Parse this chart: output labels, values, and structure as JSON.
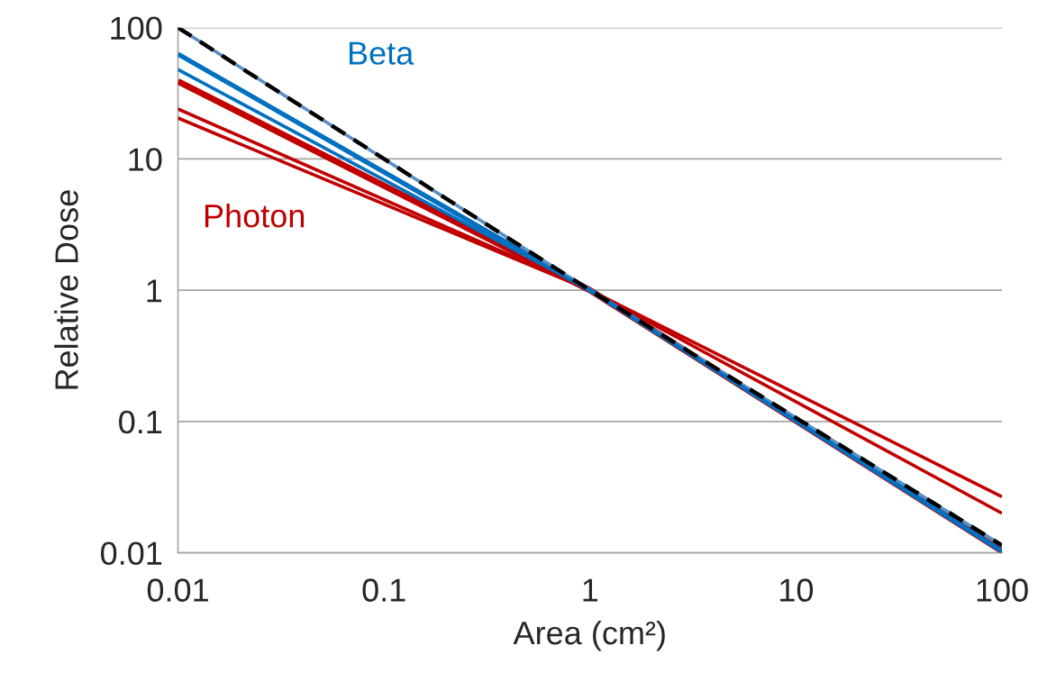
{
  "chart_data": {
    "type": "line",
    "xlabel": "Area (cm²)",
    "ylabel": "Relative Dose",
    "log": "xy",
    "x": [
      0.01,
      1,
      100
    ],
    "series": [
      {
        "color": "#5b8ec4",
        "values": [
          100,
          1,
          0.0114
        ]
      },
      {
        "name": "Beta",
        "color": "#0070c0",
        "values": [
          63,
          1,
          0.0103
        ]
      },
      {
        "color": "#0070c0",
        "values": [
          48,
          1,
          0.0103
        ]
      },
      {
        "name": "Photon",
        "color": "#c00000",
        "values": [
          39,
          1,
          0.0103
        ]
      },
      {
        "color": "#c00000",
        "values": [
          24,
          1,
          0.02
        ]
      },
      {
        "color": "#c00000",
        "values": [
          20.5,
          1,
          0.0267
        ]
      },
      {
        "color": "#000000",
        "line_style": "dashed",
        "values": [
          100,
          1,
          0.0114
        ]
      }
    ],
    "xlim": [
      0.01,
      100
    ],
    "ylim": [
      0.01,
      100
    ],
    "xticks": [
      0.01,
      0.1,
      1,
      10,
      100
    ],
    "yticks": [
      0.01,
      0.1,
      1,
      10,
      100
    ],
    "grid": "y"
  }
}
